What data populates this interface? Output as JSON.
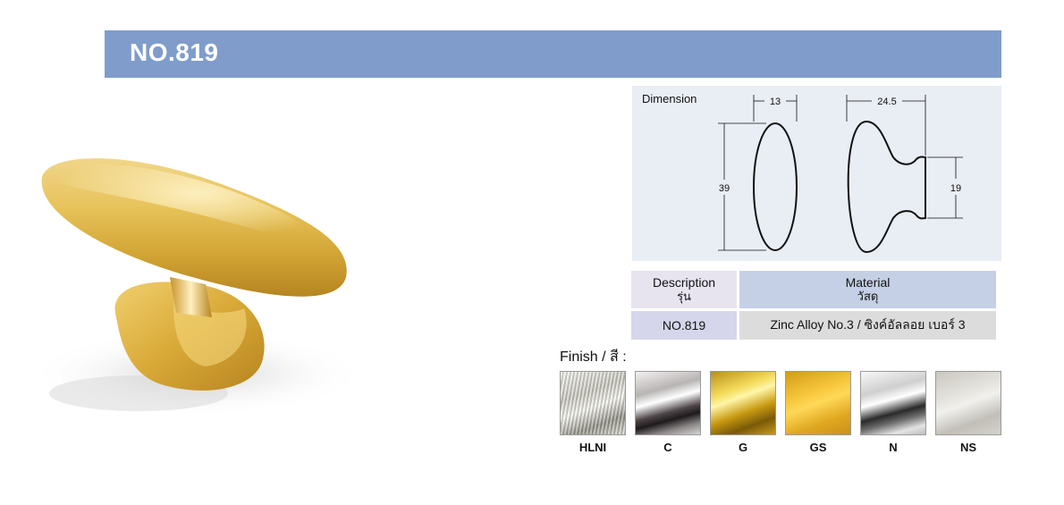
{
  "header": {
    "title": "NO.819"
  },
  "product_image": {
    "alt": "gold-oval-knob"
  },
  "dimension": {
    "label": "Dimension",
    "front_width": "13",
    "front_height": "39",
    "side_width": "24.5",
    "side_neck": "19"
  },
  "spec": {
    "description_header": "Description",
    "description_header_th": "รุ่น",
    "material_header": "Material",
    "material_header_th": "วัสดุ",
    "model": "NO.819",
    "material": "Zinc Alloy No.3 / ซิงค์อัลลอย เบอร์ 3"
  },
  "finish": {
    "label": "Finish / สี :",
    "swatches": [
      {
        "code": "HLNI"
      },
      {
        "code": "C"
      },
      {
        "code": "G"
      },
      {
        "code": "GS"
      },
      {
        "code": "N"
      },
      {
        "code": "NS"
      }
    ]
  },
  "colors": {
    "title_bar": "#7f9ccb",
    "dimension_bg": "#e9edf4"
  }
}
